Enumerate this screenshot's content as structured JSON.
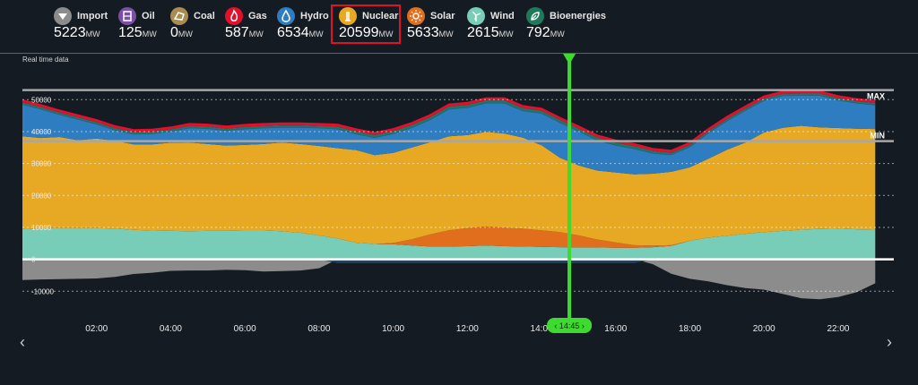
{
  "sources": [
    {
      "name": "Import",
      "value": "5223",
      "unit": "MW",
      "color": "#8c8c8c",
      "icon": "chevron-down-icon"
    },
    {
      "name": "Oil",
      "value": "125",
      "unit": "MW",
      "color": "#7b4fa6",
      "icon": "barrel-icon"
    },
    {
      "name": "Coal",
      "value": "0",
      "unit": "MW",
      "color": "#a88c52",
      "icon": "coal-icon"
    },
    {
      "name": "Gas",
      "value": "587",
      "unit": "MW",
      "color": "#e3102b",
      "icon": "flame-icon"
    },
    {
      "name": "Hydro",
      "value": "6534",
      "unit": "MW",
      "color": "#2f7dc1",
      "icon": "droplet-icon"
    },
    {
      "name": "Nuclear",
      "value": "20599",
      "unit": "MW",
      "color": "#e7a824",
      "icon": "nuclear-icon"
    },
    {
      "name": "Solar",
      "value": "5633",
      "unit": "MW",
      "color": "#e06e1c",
      "icon": "sun-icon"
    },
    {
      "name": "Wind",
      "value": "2615",
      "unit": "MW",
      "color": "#78cdb8",
      "icon": "wind-turbine-icon"
    },
    {
      "name": "Bioenergies",
      "value": "792",
      "unit": "MW",
      "color": "#1f7a5c",
      "icon": "leaf-icon"
    }
  ],
  "highlighted_source": "Nuclear",
  "realtime_label": "Real time data",
  "cursor_label": "14:45",
  "chart_data": {
    "type": "area",
    "x": [
      0,
      0.5,
      1,
      1.5,
      2,
      2.5,
      3,
      3.5,
      4,
      4.5,
      5,
      5.5,
      6,
      6.5,
      7,
      7.5,
      8,
      8.5,
      9,
      9.5,
      10,
      10.5,
      11,
      11.5,
      12,
      12.5,
      13,
      13.5,
      14,
      14.5,
      15,
      15.5,
      16,
      16.5,
      17,
      17.5,
      18,
      18.5,
      19,
      19.5,
      20,
      20.5,
      21,
      21.5,
      22,
      22.5,
      23
    ],
    "xlim": [
      0,
      23.5
    ],
    "ylim": [
      -13000,
      54000
    ],
    "yticks": [
      -10000,
      0,
      10000,
      20000,
      30000,
      40000,
      50000
    ],
    "ytick_labels": [
      "-10000",
      "0",
      "10000",
      "20000",
      "30000",
      "40000",
      "50000"
    ],
    "xticks": [
      2,
      4,
      6,
      8,
      10,
      12,
      14,
      16,
      18,
      20,
      22
    ],
    "xtick_labels": [
      "02:00",
      "04:00",
      "06:00",
      "08:00",
      "10:00",
      "12:00",
      "14:00",
      "16:00",
      "18:00",
      "20:00",
      "22:00"
    ],
    "cursor_x": 14.75,
    "reference_lines": [
      {
        "label": "MAX",
        "value": 53000
      },
      {
        "label": "MIN",
        "value": 37000
      }
    ],
    "series": [
      {
        "name": "Wind",
        "color": "#78cdb8",
        "values": [
          9500,
          9800,
          9800,
          9800,
          9800,
          9600,
          9200,
          9000,
          8900,
          8800,
          8900,
          8900,
          9000,
          9000,
          8800,
          8300,
          7500,
          6500,
          5200,
          4800,
          4700,
          4300,
          4000,
          4000,
          4100,
          4300,
          4100,
          4000,
          3900,
          3800,
          3700,
          3700,
          3600,
          3600,
          3800,
          4200,
          5800,
          6800,
          7400,
          8000,
          8500,
          8900,
          9300,
          9500,
          9600,
          9400,
          9300
        ]
      },
      {
        "name": "Import",
        "color": "#8c8c8c",
        "values": [
          -6500,
          -6300,
          -6200,
          -6100,
          -6000,
          -5500,
          -4600,
          -4200,
          -3600,
          -3500,
          -3500,
          -3300,
          -3400,
          -3800,
          -3700,
          -3500,
          -2800,
          0,
          0,
          0,
          0,
          0,
          0,
          0,
          0,
          0,
          0,
          0,
          0,
          0,
          0,
          0,
          0,
          0,
          -1500,
          -4500,
          -6100,
          -6900,
          -8100,
          -9000,
          -9500,
          -10800,
          -12200,
          -12500,
          -11800,
          -10300,
          -7500
        ]
      },
      {
        "name": "Solar",
        "color": "#e06e1c",
        "values": [
          0,
          0,
          0,
          0,
          0,
          0,
          0,
          0,
          0,
          0,
          0,
          0,
          0,
          0,
          0,
          0,
          0,
          0,
          0,
          0,
          400,
          2000,
          3800,
          5100,
          5700,
          6000,
          5800,
          5600,
          5200,
          4700,
          3800,
          2500,
          1700,
          800,
          500,
          200,
          0,
          0,
          0,
          0,
          0,
          0,
          0,
          0,
          0,
          0,
          0
        ]
      },
      {
        "name": "Nuclear",
        "color": "#e7a824",
        "values": [
          29000,
          28200,
          28500,
          27500,
          28000,
          27500,
          26800,
          27000,
          27600,
          27800,
          27200,
          26700,
          26800,
          27100,
          27800,
          27800,
          28000,
          28300,
          29000,
          27800,
          28200,
          28700,
          28900,
          29400,
          29100,
          29600,
          29500,
          28500,
          26600,
          23300,
          21900,
          21600,
          21900,
          22200,
          22500,
          23000,
          23000,
          24700,
          26900,
          28600,
          31200,
          32300,
          32500,
          31800,
          31500,
          31500,
          31500
        ]
      },
      {
        "name": "Hydro",
        "color": "#2f7dc1",
        "values": [
          10000,
          9000,
          7000,
          6500,
          4500,
          3300,
          3200,
          3300,
          3500,
          4500,
          4800,
          4700,
          5000,
          5000,
          4700,
          5200,
          5600,
          6000,
          5000,
          5500,
          6000,
          6200,
          7000,
          8500,
          8600,
          9000,
          9500,
          8400,
          10000,
          11000,
          10700,
          9500,
          8500,
          8000,
          6400,
          5300,
          6400,
          8000,
          9000,
          10000,
          10000,
          10000,
          9500,
          10000,
          8700,
          8000,
          7500
        ]
      },
      {
        "name": "Bioenergies",
        "color": "#1f7a5c",
        "values": [
          600,
          600,
          600,
          600,
          600,
          600,
          600,
          600,
          600,
          600,
          600,
          600,
          600,
          600,
          600,
          600,
          600,
          700,
          800,
          800,
          800,
          800,
          800,
          800,
          800,
          800,
          800,
          800,
          800,
          800,
          800,
          800,
          800,
          800,
          700,
          600,
          600,
          600,
          600,
          600,
          600,
          600,
          600,
          600,
          600,
          600,
          600
        ]
      },
      {
        "name": "Oil",
        "color": "#7b4fa6",
        "values": [
          100,
          100,
          100,
          100,
          100,
          100,
          100,
          100,
          100,
          100,
          100,
          100,
          100,
          100,
          100,
          100,
          100,
          100,
          100,
          100,
          100,
          100,
          100,
          100,
          100,
          100,
          100,
          100,
          100,
          100,
          100,
          100,
          100,
          100,
          100,
          100,
          100,
          100,
          100,
          100,
          100,
          100,
          100,
          100,
          100,
          100,
          100
        ]
      },
      {
        "name": "Gas",
        "color": "#e3102b",
        "values": [
          600,
          600,
          600,
          600,
          600,
          600,
          600,
          600,
          600,
          600,
          600,
          600,
          600,
          600,
          600,
          600,
          600,
          600,
          600,
          600,
          600,
          600,
          600,
          600,
          600,
          600,
          600,
          600,
          600,
          600,
          600,
          600,
          600,
          600,
          600,
          600,
          600,
          600,
          600,
          600,
          600,
          600,
          600,
          600,
          600,
          600,
          600
        ]
      }
    ]
  }
}
